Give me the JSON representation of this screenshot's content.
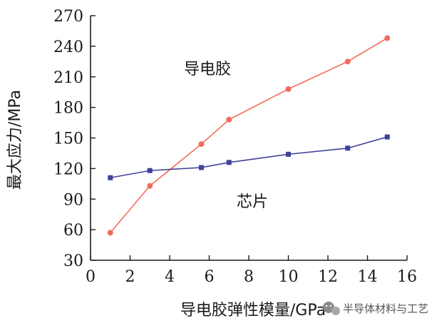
{
  "chart_data": {
    "type": "line",
    "xlabel": "导电胶弹性模量/GPa",
    "ylabel": "最大应力/MPa",
    "xlim": [
      0,
      16
    ],
    "ylim": [
      30,
      270
    ],
    "xticks": [
      0,
      2,
      4,
      6,
      8,
      10,
      12,
      14,
      16
    ],
    "yticks": [
      30,
      60,
      90,
      120,
      150,
      180,
      210,
      240,
      270
    ],
    "grid": false,
    "series": [
      {
        "name": "导电胶",
        "color": "#f26b5b",
        "marker": "circle",
        "x": [
          1,
          3,
          5.6,
          7,
          10,
          13,
          15
        ],
        "y": [
          57,
          103,
          144,
          168,
          198,
          225,
          248
        ]
      },
      {
        "name": "芯片",
        "color": "#3f4299",
        "marker": "square",
        "x": [
          1,
          3,
          5.6,
          7,
          10,
          13,
          15
        ],
        "y": [
          111,
          118,
          121,
          126,
          134,
          140,
          151
        ]
      }
    ]
  },
  "watermark": {
    "text": "半导体材料与工艺",
    "icon": "wechat-icon"
  }
}
